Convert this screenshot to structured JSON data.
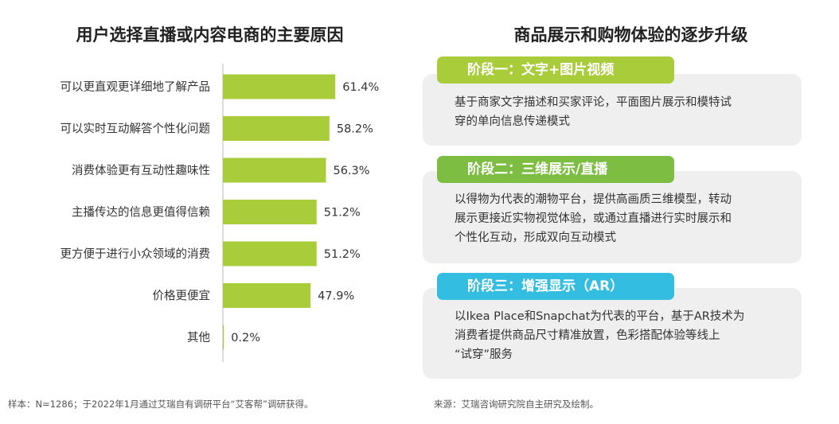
{
  "left_panel": {
    "title": "用户选择直播或内容电商的主要原因",
    "footnote": "样本：N=1286；于2022年1月通过艾瑞自有调研平台“艾客帮”调研获得。"
  },
  "chart_data": {
    "type": "bar",
    "orientation": "horizontal",
    "categories": [
      "可以更直观更详细地了解产品",
      "可以实时互动解答个性化问题",
      "消费体验更有互动性趣味性",
      "主播传达的信息更值得信赖",
      "更方便于进行小众领域的消费",
      "价格更便宜",
      "其他"
    ],
    "values": [
      61.4,
      58.2,
      56.3,
      51.2,
      51.2,
      47.9,
      0.2
    ],
    "value_labels": [
      "61.4%",
      "58.2%",
      "56.3%",
      "51.2%",
      "51.2%",
      "47.9%",
      "0.2%"
    ],
    "unit": "%",
    "bar_color": "#a8cc3a",
    "grid": false,
    "legend": "none"
  },
  "right_panel": {
    "title": "商品展示和购物体验的逐步升级",
    "footnote": "来源：艾瑞咨询研究院自主研究及绘制。",
    "stages": [
      {
        "label": "阶段一：文字+图片视频",
        "color": "#a8cc3a",
        "lines": [
          "基于商家文字描述和买家评论，平面图片展示和模特试",
          "穿的单向信息传递模式"
        ]
      },
      {
        "label": "阶段二：三维展示/直播",
        "color": "#7cbd42",
        "lines": [
          "以得物为代表的潮物平台，提供高画质三维模型，转动",
          "展示更接近实物视觉体验，或通过直播进行实时展示和",
          "个性化互动，形成双向互动模式"
        ]
      },
      {
        "label": "阶段三：增强显示（AR）",
        "color": "#33bde0",
        "lines": [
          "以Ikea Place和Snapchat为代表的平台，基于AR技术为",
          "消费者提供商品尺寸精准放置，色彩搭配体验等线上",
          "“试穿”服务"
        ]
      }
    ]
  }
}
